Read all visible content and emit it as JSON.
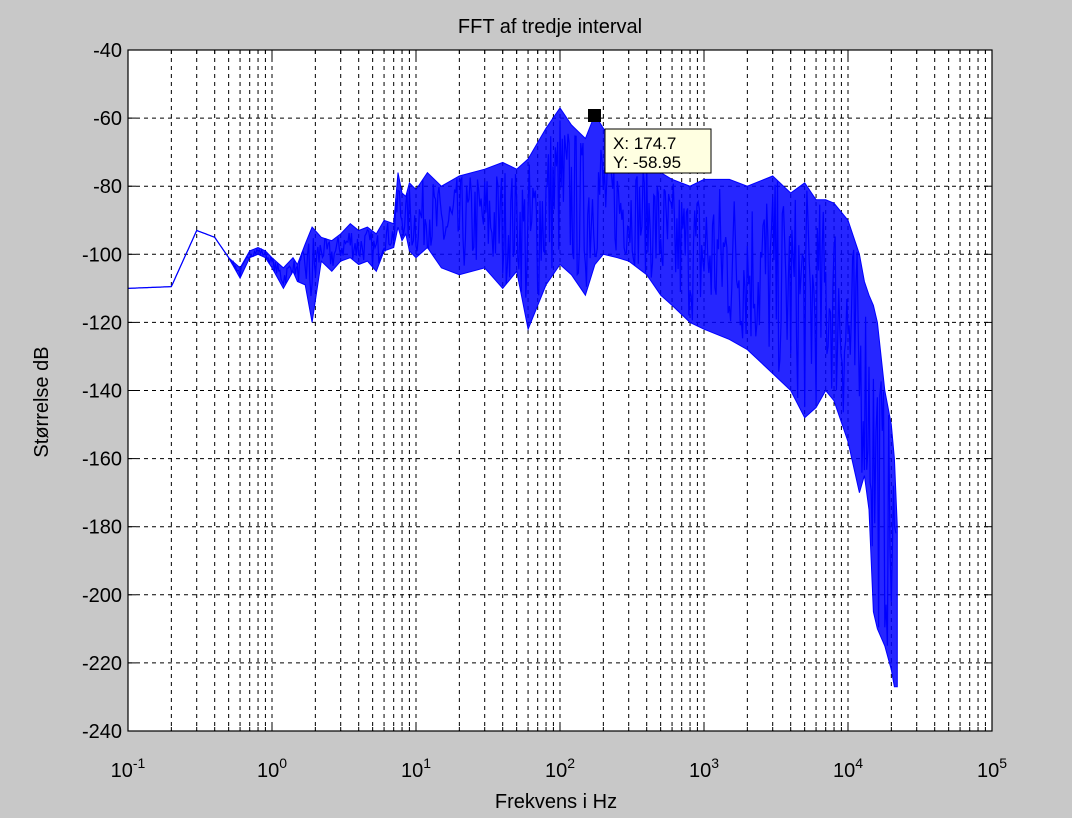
{
  "chart_data": {
    "type": "line",
    "title": "FFT af tredje interval",
    "xlabel": "Frekvens i Hz",
    "ylabel": "Størrelse dB",
    "xscale": "log",
    "xlim": [
      0.1,
      100000
    ],
    "ylim": [
      -240,
      -40
    ],
    "grid": true,
    "grid_style": "dashed",
    "x_ticks": [
      {
        "base": "10",
        "exp": "-1",
        "value": 0.1
      },
      {
        "base": "10",
        "exp": "0",
        "value": 1
      },
      {
        "base": "10",
        "exp": "1",
        "value": 10
      },
      {
        "base": "10",
        "exp": "2",
        "value": 100
      },
      {
        "base": "10",
        "exp": "3",
        "value": 1000
      },
      {
        "base": "10",
        "exp": "4",
        "value": 10000
      },
      {
        "base": "10",
        "exp": "5",
        "value": 100000
      }
    ],
    "y_ticks": [
      -40,
      -60,
      -80,
      -100,
      -120,
      -140,
      -160,
      -180,
      -200,
      -220,
      -240
    ],
    "line_color": "#0000ff",
    "series": [
      {
        "color": "#0000ff",
        "x": [
          0.1,
          0.2,
          0.3,
          0.4,
          0.5,
          0.6,
          0.7,
          0.8,
          0.9,
          1.0,
          1.2,
          1.4,
          1.5,
          1.7,
          1.9,
          2.2,
          2.6,
          3,
          3.5,
          4,
          4.6,
          5.3,
          6,
          7,
          7.5,
          8,
          8.5,
          9,
          10,
          12,
          15,
          20,
          30,
          40,
          50,
          60,
          80,
          100,
          120,
          150,
          174.7,
          200,
          250,
          300,
          400,
          500,
          600,
          800,
          1000,
          1500,
          2000,
          3000,
          4000,
          5000,
          6000,
          7000,
          8000,
          10000,
          12000,
          13000,
          14000,
          15000,
          16000,
          18000,
          20000,
          21000,
          22000
        ],
        "upper": [
          -110,
          -109.5,
          -93,
          -95,
          -101,
          -104,
          -99,
          -98,
          -99,
          -101,
          -104,
          -101,
          -103,
          -97,
          -92,
          -95,
          -96,
          -94,
          -91,
          -93,
          -92,
          -94,
          -90,
          -91,
          -76,
          -82,
          -83,
          -79,
          -81,
          -76,
          -80,
          -77,
          -75,
          -73,
          -75,
          -72,
          -63,
          -57,
          -62,
          -66,
          -58.95,
          -63,
          -70,
          -74,
          -72,
          -76,
          -78,
          -80,
          -78,
          -78,
          -80,
          -77,
          -82,
          -79,
          -84,
          -84,
          -85,
          -90,
          -100,
          -108,
          -112,
          -115,
          -120,
          -140,
          -150,
          -160,
          -180
        ],
        "lower": [
          -110,
          -109.5,
          -93,
          -95,
          -101,
          -107,
          -101,
          -100,
          -101,
          -104,
          -110,
          -105,
          -108,
          -109,
          -120,
          -102,
          -105,
          -102,
          -101,
          -103,
          -102,
          -105,
          -99,
          -98,
          -92,
          -96,
          -94,
          -99,
          -101,
          -98,
          -104,
          -106,
          -104,
          -110,
          -105,
          -122,
          -109,
          -103,
          -106,
          -112,
          -103,
          -100,
          -101,
          -102,
          -106,
          -112,
          -115,
          -120,
          -122,
          -125,
          -128,
          -135,
          -140,
          -148,
          -145,
          -140,
          -143,
          -155,
          -170,
          -165,
          -175,
          -205,
          -210,
          -215,
          -222,
          -227,
          -227
        ]
      }
    ],
    "annotation": {
      "x": 174.7,
      "y": -58.95,
      "x_text": "X: 174.7",
      "y_text": "Y: -58.95"
    }
  }
}
